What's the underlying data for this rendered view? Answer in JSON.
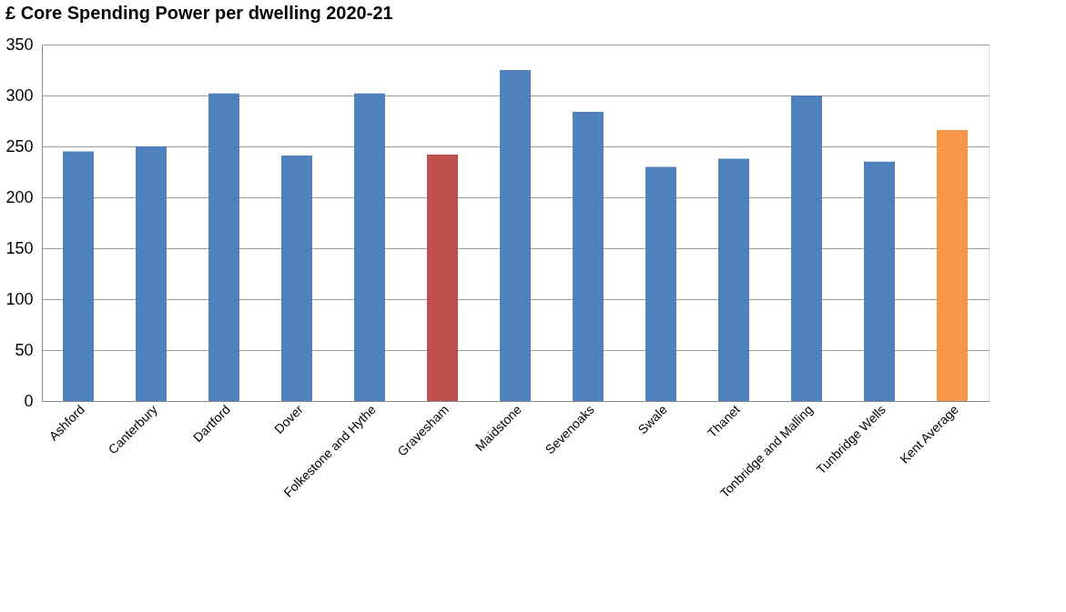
{
  "chart_data": {
    "type": "bar",
    "title": "Core Spending Power per dwelling 2020-21",
    "ylabel": "£",
    "categories": [
      "Ashford",
      "Canterbury",
      "Dartford",
      "Dover",
      "Folkestone and Hythe",
      "Gravesham",
      "Maidstone",
      "Sevenoaks",
      "Swale",
      "Thanet",
      "Tonbridge and Malling",
      "Tunbridge Wells",
      "Kent Average"
    ],
    "values": [
      245,
      250,
      302,
      241,
      302,
      242,
      325,
      284,
      230,
      238,
      300,
      235,
      266
    ],
    "colors": [
      "#4f81bd",
      "#4f81bd",
      "#4f81bd",
      "#4f81bd",
      "#4f81bd",
      "#c0504d",
      "#4f81bd",
      "#4f81bd",
      "#4f81bd",
      "#4f81bd",
      "#4f81bd",
      "#4f81bd",
      "#f79646"
    ],
    "ylim": [
      0,
      350
    ],
    "yticks": [
      0,
      50,
      100,
      150,
      200,
      250,
      300,
      350
    ],
    "grid": "y"
  }
}
